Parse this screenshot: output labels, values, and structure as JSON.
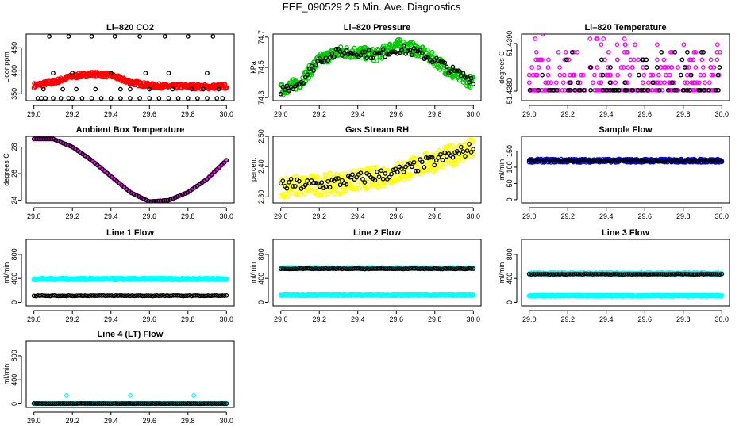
{
  "page": {
    "title": "FEF_090529  2.5 Min. Ave. Diagnostics"
  },
  "colors": {
    "black": "#000000",
    "red": "#ff0000",
    "green": "#00cc00",
    "magenta": "#ff00ff",
    "yellow": "#ffff00",
    "blue": "#0000ff",
    "cyan": "#00ffff"
  },
  "chart_data": [
    {
      "type": "scatter",
      "title": "Li–820 CO2",
      "ylabel": "Licor ppm",
      "xlim": [
        29.0,
        30.0
      ],
      "ylim": [
        335,
        480
      ],
      "xticks": [
        29.0,
        29.2,
        29.4,
        29.6,
        29.8,
        30.0
      ],
      "yticks": [
        350,
        400,
        450
      ],
      "series": [
        {
          "name": "red",
          "color": "red",
          "style": "dense",
          "x": [
            29.0,
            29.1,
            29.2,
            29.3,
            29.4,
            29.5,
            29.6,
            29.7,
            29.8,
            29.9,
            30.0
          ],
          "y": [
            368,
            375,
            388,
            393,
            390,
            375,
            368,
            366,
            366,
            365,
            366
          ],
          "spread": 5
        },
        {
          "name": "black",
          "color": "black",
          "style": "points",
          "x": [
            29.02,
            29.04,
            29.06,
            29.1,
            29.14,
            29.18,
            29.2,
            29.25,
            29.3,
            29.35,
            29.4,
            29.45,
            29.5,
            29.55,
            29.6,
            29.65,
            29.7,
            29.75,
            29.8,
            29.85,
            29.9,
            29.95,
            29.98,
            29.08,
            29.18,
            29.3,
            29.42,
            29.55,
            29.68,
            29.8,
            29.93,
            29.05,
            29.15,
            29.22,
            29.32,
            29.45,
            29.5,
            29.6,
            29.72,
            29.82,
            29.88,
            29.96,
            29.1,
            29.2,
            29.4,
            29.58,
            29.7,
            29.9
          ],
          "y": [
            340,
            340,
            340,
            340,
            340,
            340,
            340,
            340,
            340,
            340,
            340,
            340,
            340,
            340,
            340,
            340,
            340,
            340,
            340,
            340,
            340,
            340,
            340,
            475,
            475,
            475,
            475,
            475,
            475,
            475,
            475,
            360,
            360,
            360,
            360,
            360,
            360,
            360,
            360,
            360,
            360,
            360,
            395,
            395,
            395,
            395,
            395,
            395
          ]
        }
      ]
    },
    {
      "type": "scatter",
      "title": "Li–820 Pressure",
      "ylabel": "kPa",
      "xlim": [
        29.0,
        30.0
      ],
      "ylim": [
        74.28,
        74.72
      ],
      "xticks": [
        29.0,
        29.2,
        29.4,
        29.6,
        29.8,
        30.0
      ],
      "yticks": [
        74.3,
        74.5,
        74.7
      ],
      "series": [
        {
          "name": "green",
          "color": "green",
          "style": "dense",
          "x": [
            29.0,
            29.1,
            29.2,
            29.3,
            29.4,
            29.5,
            29.6,
            29.7,
            29.8,
            29.9,
            30.0
          ],
          "y": [
            74.35,
            74.4,
            74.55,
            74.6,
            74.6,
            74.58,
            74.65,
            74.62,
            74.55,
            74.45,
            74.4
          ],
          "spread": 0.04
        },
        {
          "name": "black",
          "color": "black",
          "style": "sparse",
          "x": [
            29.0,
            29.1,
            29.2,
            29.3,
            29.4,
            29.5,
            29.6,
            29.7,
            29.8,
            29.9,
            30.0
          ],
          "y": [
            74.35,
            74.4,
            74.55,
            74.6,
            74.6,
            74.58,
            74.62,
            74.6,
            74.55,
            74.47,
            74.42
          ],
          "spread": 0.03
        }
      ]
    },
    {
      "type": "scatter",
      "title": "Li–820 Temperature",
      "ylabel": "degrees C",
      "xlim": [
        29.0,
        30.0
      ],
      "ylim": [
        51.4378,
        51.4392
      ],
      "xticks": [
        29.0,
        29.2,
        29.4,
        29.6,
        29.8,
        30.0
      ],
      "yticks": [
        51.438,
        51.439
      ],
      "ytickLabels": [
        "51.4380",
        "51.4390"
      ],
      "series": [
        {
          "name": "magenta",
          "color": "magenta",
          "style": "levels",
          "x": [
            29.0,
            30.0
          ],
          "levels": [
            51.43802,
            51.43818,
            51.43834,
            51.4385,
            51.43866,
            51.43882,
            51.43898,
            51.4391
          ]
        },
        {
          "name": "black",
          "color": "black",
          "style": "levels-sparse",
          "x": [
            29.0,
            30.0
          ],
          "levels": [
            51.43802,
            51.43818,
            51.43834,
            51.4385,
            51.43866,
            51.43882
          ]
        }
      ]
    },
    {
      "type": "scatter",
      "title": "Ambient Box Temperature",
      "ylabel": "degrees C",
      "xlim": [
        29.0,
        30.0
      ],
      "ylim": [
        23.8,
        28.8
      ],
      "xticks": [
        29.0,
        29.2,
        29.4,
        29.6,
        29.8,
        30.0
      ],
      "yticks": [
        24,
        26,
        28
      ],
      "series": [
        {
          "name": "magenta",
          "color": "magenta",
          "style": "curve",
          "x": [
            29.0,
            29.1,
            29.2,
            29.3,
            29.4,
            29.5,
            29.6,
            29.7,
            29.8,
            29.9,
            30.0
          ],
          "y": [
            28.6,
            28.6,
            28.0,
            27.0,
            25.8,
            24.6,
            23.9,
            24.0,
            24.6,
            25.6,
            27.0
          ]
        },
        {
          "name": "black",
          "color": "black",
          "style": "curve-points",
          "x": [
            29.0,
            29.1,
            29.2,
            29.3,
            29.4,
            29.5,
            29.6,
            29.7,
            29.8,
            29.9,
            30.0
          ],
          "y": [
            28.6,
            28.6,
            28.0,
            27.0,
            25.8,
            24.6,
            23.9,
            24.0,
            24.6,
            25.6,
            27.0
          ]
        }
      ]
    },
    {
      "type": "scatter",
      "title": "Gas Stream RH",
      "ylabel": "percent",
      "xlim": [
        29.0,
        30.0
      ],
      "ylim": [
        2.28,
        2.5
      ],
      "xticks": [
        29.0,
        29.2,
        29.4,
        29.6,
        29.8,
        30.0
      ],
      "yticks": [
        2.3,
        2.4,
        2.5
      ],
      "ytickLabels": [
        "2.30",
        "2.40",
        "2.50"
      ],
      "series": [
        {
          "name": "yellow",
          "color": "yellow",
          "style": "dense",
          "x": [
            29.0,
            29.1,
            29.2,
            29.3,
            29.4,
            29.5,
            29.6,
            29.7,
            29.8,
            29.9,
            30.0
          ],
          "y": [
            2.335,
            2.335,
            2.34,
            2.345,
            2.355,
            2.365,
            2.38,
            2.4,
            2.42,
            2.44,
            2.46
          ],
          "spread": 0.035
        },
        {
          "name": "black",
          "color": "black",
          "style": "sparse",
          "x": [
            29.0,
            29.1,
            29.2,
            29.3,
            29.4,
            29.5,
            29.6,
            29.7,
            29.8,
            29.9,
            30.0
          ],
          "y": [
            2.34,
            2.34,
            2.34,
            2.35,
            2.36,
            2.37,
            2.38,
            2.4,
            2.42,
            2.44,
            2.46
          ],
          "spread": 0.02
        }
      ]
    },
    {
      "type": "scatter",
      "title": "Sample Flow",
      "ylabel": "ml/min",
      "xlim": [
        29.0,
        30.0
      ],
      "ylim": [
        -10,
        195
      ],
      "xticks": [
        29.0,
        29.2,
        29.4,
        29.6,
        29.8,
        30.0
      ],
      "yticks": [
        0,
        50,
        100,
        150
      ],
      "series": [
        {
          "name": "blue",
          "color": "blue",
          "style": "band",
          "x": [
            29.0,
            30.0
          ],
          "y": [
            120,
            120
          ],
          "spread": 5
        },
        {
          "name": "black",
          "color": "black",
          "style": "band-sparse",
          "x": [
            29.0,
            30.0
          ],
          "y": [
            120,
            120
          ],
          "spread": 3
        }
      ]
    },
    {
      "type": "scatter",
      "title": "Line 1 Flow",
      "ylabel": "ml/min",
      "xlim": [
        29.0,
        30.0
      ],
      "ylim": [
        -60,
        1050
      ],
      "xticks": [
        29.0,
        29.2,
        29.4,
        29.6,
        29.8,
        30.0
      ],
      "yticks": [
        0,
        400,
        800
      ],
      "series": [
        {
          "name": "cyan",
          "color": "cyan",
          "style": "band",
          "x": [
            29.0,
            30.0
          ],
          "y": [
            390,
            390
          ],
          "spread": 15
        },
        {
          "name": "black",
          "color": "black",
          "style": "band-sparse",
          "x": [
            29.0,
            30.0
          ],
          "y": [
            110,
            110
          ],
          "spread": 5
        }
      ]
    },
    {
      "type": "scatter",
      "title": "Line 2 Flow",
      "ylabel": "ml/min",
      "xlim": [
        29.0,
        30.0
      ],
      "ylim": [
        -60,
        1050
      ],
      "xticks": [
        29.0,
        29.2,
        29.4,
        29.6,
        29.8,
        30.0
      ],
      "yticks": [
        0,
        400,
        800
      ],
      "series": [
        {
          "name": "cyan-high",
          "color": "cyan",
          "style": "band",
          "x": [
            29.0,
            30.0
          ],
          "y": [
            570,
            570
          ],
          "spread": 12
        },
        {
          "name": "cyan-low",
          "color": "cyan",
          "style": "band",
          "x": [
            29.0,
            30.0
          ],
          "y": [
            120,
            120
          ],
          "spread": 8
        },
        {
          "name": "black",
          "color": "black",
          "style": "band-sparse",
          "x": [
            29.0,
            30.0
          ],
          "y": [
            560,
            560
          ],
          "spread": 5
        }
      ]
    },
    {
      "type": "scatter",
      "title": "Line 3 Flow",
      "ylabel": "ml/min",
      "xlim": [
        29.0,
        30.0
      ],
      "ylim": [
        -60,
        1050
      ],
      "xticks": [
        29.0,
        29.2,
        29.4,
        29.6,
        29.8,
        30.0
      ],
      "yticks": [
        0,
        400,
        800
      ],
      "series": [
        {
          "name": "cyan-high",
          "color": "cyan",
          "style": "band",
          "x": [
            29.0,
            30.0
          ],
          "y": [
            480,
            480
          ],
          "spread": 15
        },
        {
          "name": "cyan-low",
          "color": "cyan",
          "style": "band",
          "x": [
            29.0,
            30.0
          ],
          "y": [
            110,
            110
          ],
          "spread": 8
        },
        {
          "name": "black",
          "color": "black",
          "style": "band-sparse",
          "x": [
            29.0,
            30.0
          ],
          "y": [
            470,
            470
          ],
          "spread": 5
        }
      ]
    },
    {
      "type": "scatter",
      "title": "Line 4 (LT) Flow",
      "ylabel": "ml/min",
      "xlim": [
        29.0,
        30.0
      ],
      "ylim": [
        -60,
        1050
      ],
      "xticks": [
        29.0,
        29.2,
        29.4,
        29.6,
        29.8,
        30.0
      ],
      "yticks": [
        0,
        400,
        800
      ],
      "series": [
        {
          "name": "cyan",
          "color": "cyan",
          "style": "band",
          "x": [
            29.0,
            30.0
          ],
          "y": [
            5,
            5
          ],
          "spread": 3
        },
        {
          "name": "cyan-spikes",
          "color": "cyan",
          "style": "points",
          "x": [
            29.17,
            29.5,
            29.83
          ],
          "y": [
            140,
            140,
            140
          ]
        },
        {
          "name": "black",
          "color": "black",
          "style": "band-sparse",
          "x": [
            29.0,
            30.0
          ],
          "y": [
            5,
            5
          ],
          "spread": 2
        }
      ]
    }
  ]
}
